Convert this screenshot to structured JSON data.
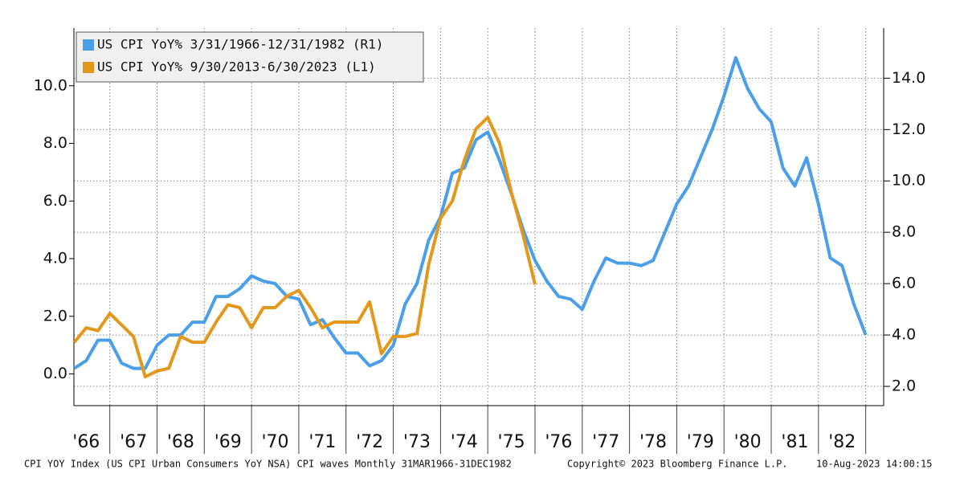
{
  "chart_data": {
    "type": "line",
    "legend": "top-left",
    "grid": true,
    "xlim": [
      1966.24,
      1983.38
    ],
    "xticks": [
      {
        "value": 1966.5,
        "label": "'66"
      },
      {
        "value": 1967.5,
        "label": "'67"
      },
      {
        "value": 1968.5,
        "label": "'68"
      },
      {
        "value": 1969.5,
        "label": "'69"
      },
      {
        "value": 1970.5,
        "label": "'70"
      },
      {
        "value": 1971.5,
        "label": "'71"
      },
      {
        "value": 1972.5,
        "label": "'72"
      },
      {
        "value": 1973.5,
        "label": "'73"
      },
      {
        "value": 1974.5,
        "label": "'74"
      },
      {
        "value": 1975.5,
        "label": "'75"
      },
      {
        "value": 1976.5,
        "label": "'76"
      },
      {
        "value": 1977.5,
        "label": "'77"
      },
      {
        "value": 1978.5,
        "label": "'78"
      },
      {
        "value": 1979.5,
        "label": "'79"
      },
      {
        "value": 1980.5,
        "label": "'80"
      },
      {
        "value": 1981.5,
        "label": "'81"
      },
      {
        "value": 1982.5,
        "label": "'82"
      }
    ],
    "xgrid": [
      1967,
      1968,
      1969,
      1970,
      1971,
      1972,
      1973,
      1974,
      1975,
      1976,
      1977,
      1978,
      1979,
      1980,
      1981,
      1982,
      1983
    ],
    "ylim": [
      -1.1,
      12.0
    ],
    "yticks": [
      {
        "value": 0,
        "label": "0.0"
      },
      {
        "value": 2,
        "label": "2.0"
      },
      {
        "value": 4,
        "label": "4.0"
      },
      {
        "value": 6,
        "label": "6.0"
      },
      {
        "value": 8,
        "label": "8.0"
      },
      {
        "value": 10,
        "label": "10.0"
      }
    ],
    "y2lim": [
      1.25,
      15.95
    ],
    "y2ticks": [
      {
        "value": 2,
        "label": "2.0"
      },
      {
        "value": 4,
        "label": "4.0"
      },
      {
        "value": 6,
        "label": "6.0"
      },
      {
        "value": 8,
        "label": "8.0"
      },
      {
        "value": 10,
        "label": "10.0"
      },
      {
        "value": 12,
        "label": "12.0"
      },
      {
        "value": 14,
        "label": "14.0"
      }
    ],
    "series": [
      {
        "name": "US CPI YoY% 3/31/1966-12/31/1982 (R1)",
        "color": "#4a9fe8",
        "axis": "y2",
        "x": [
          1966.25,
          1966.5,
          1966.75,
          1967,
          1967.25,
          1967.5,
          1967.75,
          1968,
          1968.25,
          1968.5,
          1968.75,
          1969,
          1969.25,
          1969.5,
          1969.75,
          1970,
          1970.25,
          1970.5,
          1970.75,
          1971,
          1971.25,
          1971.5,
          1971.75,
          1972,
          1972.25,
          1972.5,
          1972.75,
          1973,
          1973.25,
          1973.5,
          1973.75,
          1974,
          1974.25,
          1974.5,
          1974.75,
          1975,
          1975.25,
          1975.5,
          1975.75,
          1976,
          1976.25,
          1976.5,
          1976.75,
          1977,
          1977.25,
          1977.5,
          1977.75,
          1978,
          1978.25,
          1978.5,
          1978.75,
          1979,
          1979.25,
          1979.5,
          1979.75,
          1980,
          1980.25,
          1980.5,
          1980.75,
          1981,
          1981.25,
          1981.5,
          1981.75,
          1982,
          1982.25,
          1982.5,
          1982.75,
          1983
        ],
        "values": [
          2.7,
          3.0,
          3.8,
          3.8,
          2.9,
          2.7,
          2.7,
          3.6,
          4.0,
          4.0,
          4.5,
          4.5,
          5.5,
          5.5,
          5.8,
          6.3,
          6.1,
          6.0,
          5.5,
          5.4,
          4.4,
          4.6,
          3.9,
          3.3,
          3.3,
          2.8,
          3.0,
          3.6,
          5.2,
          6.0,
          7.7,
          8.6,
          10.3,
          10.5,
          11.6,
          11.9,
          10.8,
          9.5,
          8.1,
          6.9,
          6.1,
          5.5,
          5.4,
          5.0,
          6.1,
          7.0,
          6.8,
          6.8,
          6.7,
          6.9,
          8.0,
          9.1,
          9.8,
          10.9,
          12.0,
          13.3,
          14.8,
          13.6,
          12.8,
          12.3,
          10.5,
          9.8,
          10.9,
          9.1,
          7.0,
          6.7,
          5.2,
          4.0
        ]
      },
      {
        "name": "US CPI YoY% 9/30/2013-6/30/2023 (L1)",
        "color": "#e3981b",
        "axis": "y",
        "x": [
          1966.25,
          1966.5,
          1966.75,
          1967,
          1967.25,
          1967.5,
          1967.75,
          1968,
          1968.25,
          1968.5,
          1968.75,
          1969,
          1969.25,
          1969.5,
          1969.75,
          1970,
          1970.25,
          1970.5,
          1970.75,
          1971,
          1971.25,
          1971.5,
          1971.75,
          1972,
          1972.25,
          1972.5,
          1972.75,
          1973,
          1973.25,
          1973.5,
          1973.75,
          1974,
          1974.25,
          1974.5,
          1974.75,
          1975,
          1975.25,
          1975.5,
          1975.75,
          1976
        ],
        "values": [
          1.1,
          1.6,
          1.5,
          2.1,
          1.7,
          1.3,
          -0.1,
          0.1,
          0.2,
          1.3,
          1.1,
          1.1,
          1.8,
          2.4,
          2.3,
          1.6,
          2.3,
          2.3,
          2.7,
          2.9,
          2.3,
          1.6,
          1.8,
          1.8,
          1.8,
          2.5,
          0.7,
          1.3,
          1.3,
          1.4,
          3.8,
          5.4,
          6.0,
          7.4,
          8.5,
          8.9,
          8.0,
          6.3,
          4.8,
          3.1
        ]
      }
    ],
    "footer": {
      "left": "CPI YOY Index (US CPI Urban Consumers YoY NSA) CPI waves  Monthly 31MAR1966-31DEC1982",
      "center": "Copyright© 2023 Bloomberg Finance L.P.",
      "right": "10-Aug-2023 14:00:15"
    }
  }
}
